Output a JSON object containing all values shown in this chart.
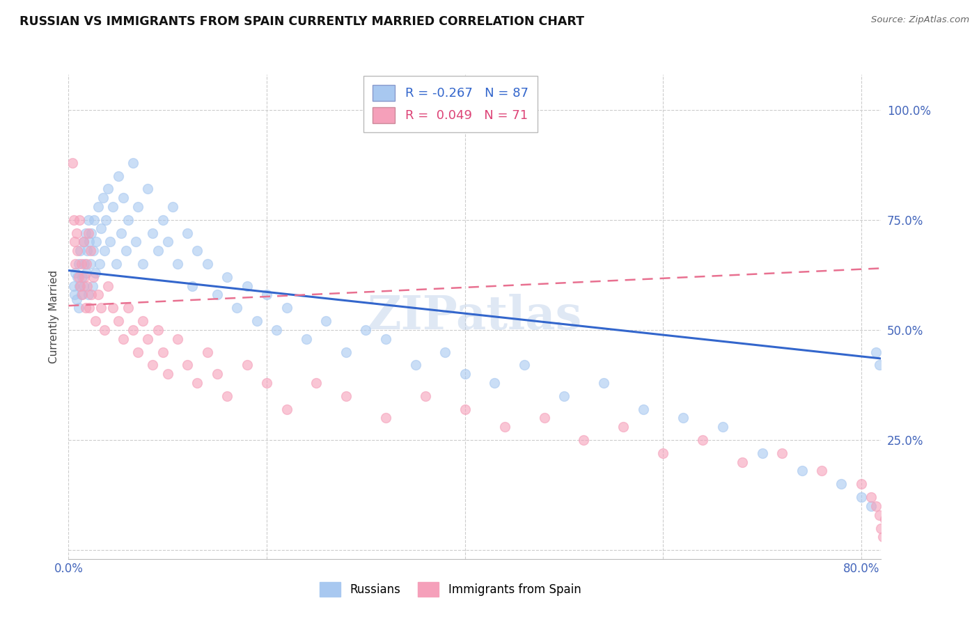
{
  "title": "RUSSIAN VS IMMIGRANTS FROM SPAIN CURRENTLY MARRIED CORRELATION CHART",
  "source": "Source: ZipAtlas.com",
  "ylabel": "Currently Married",
  "legend_labels": [
    "Russians",
    "Immigrants from Spain"
  ],
  "xlim": [
    0.0,
    0.82
  ],
  "ylim": [
    -0.02,
    1.08
  ],
  "x_ticks": [
    0.0,
    0.2,
    0.4,
    0.6,
    0.8
  ],
  "x_tick_labels": [
    "0.0%",
    "",
    "",
    "",
    "80.0%"
  ],
  "y_ticks": [
    0.0,
    0.25,
    0.5,
    0.75,
    1.0
  ],
  "y_tick_labels_right": [
    "",
    "25.0%",
    "50.0%",
    "75.0%",
    "100.0%"
  ],
  "russian_color": "#A8C8F0",
  "spain_color": "#F5A0BA",
  "russian_line_color": "#3366CC",
  "spain_line_color": "#E87090",
  "watermark": "ZIPatlas",
  "russians_x": [
    0.005,
    0.006,
    0.007,
    0.008,
    0.009,
    0.01,
    0.01,
    0.011,
    0.012,
    0.013,
    0.014,
    0.015,
    0.015,
    0.016,
    0.017,
    0.018,
    0.019,
    0.02,
    0.02,
    0.021,
    0.022,
    0.023,
    0.024,
    0.025,
    0.026,
    0.027,
    0.028,
    0.03,
    0.031,
    0.033,
    0.035,
    0.036,
    0.038,
    0.04,
    0.042,
    0.045,
    0.048,
    0.05,
    0.053,
    0.055,
    0.058,
    0.06,
    0.065,
    0.068,
    0.07,
    0.075,
    0.08,
    0.085,
    0.09,
    0.095,
    0.1,
    0.105,
    0.11,
    0.12,
    0.125,
    0.13,
    0.14,
    0.15,
    0.16,
    0.17,
    0.18,
    0.19,
    0.2,
    0.21,
    0.22,
    0.24,
    0.26,
    0.28,
    0.3,
    0.32,
    0.35,
    0.38,
    0.4,
    0.43,
    0.46,
    0.5,
    0.54,
    0.58,
    0.62,
    0.66,
    0.7,
    0.74,
    0.78,
    0.8,
    0.81,
    0.815,
    0.818
  ],
  "russians_y": [
    0.6,
    0.58,
    0.63,
    0.57,
    0.62,
    0.65,
    0.55,
    0.6,
    0.68,
    0.58,
    0.62,
    0.7,
    0.6,
    0.65,
    0.72,
    0.63,
    0.68,
    0.75,
    0.58,
    0.7,
    0.65,
    0.72,
    0.6,
    0.68,
    0.75,
    0.63,
    0.7,
    0.78,
    0.65,
    0.73,
    0.8,
    0.68,
    0.75,
    0.82,
    0.7,
    0.78,
    0.65,
    0.85,
    0.72,
    0.8,
    0.68,
    0.75,
    0.88,
    0.7,
    0.78,
    0.65,
    0.82,
    0.72,
    0.68,
    0.75,
    0.7,
    0.78,
    0.65,
    0.72,
    0.6,
    0.68,
    0.65,
    0.58,
    0.62,
    0.55,
    0.6,
    0.52,
    0.58,
    0.5,
    0.55,
    0.48,
    0.52,
    0.45,
    0.5,
    0.48,
    0.42,
    0.45,
    0.4,
    0.38,
    0.42,
    0.35,
    0.38,
    0.32,
    0.3,
    0.28,
    0.22,
    0.18,
    0.15,
    0.12,
    0.1,
    0.45,
    0.42
  ],
  "spain_x": [
    0.004,
    0.005,
    0.006,
    0.007,
    0.008,
    0.009,
    0.01,
    0.011,
    0.012,
    0.013,
    0.014,
    0.015,
    0.016,
    0.017,
    0.018,
    0.019,
    0.02,
    0.021,
    0.022,
    0.023,
    0.025,
    0.027,
    0.03,
    0.033,
    0.036,
    0.04,
    0.045,
    0.05,
    0.055,
    0.06,
    0.065,
    0.07,
    0.075,
    0.08,
    0.085,
    0.09,
    0.095,
    0.1,
    0.11,
    0.12,
    0.13,
    0.14,
    0.15,
    0.16,
    0.18,
    0.2,
    0.22,
    0.25,
    0.28,
    0.32,
    0.36,
    0.4,
    0.44,
    0.48,
    0.52,
    0.56,
    0.6,
    0.64,
    0.68,
    0.72,
    0.76,
    0.8,
    0.81,
    0.815,
    0.818,
    0.82,
    0.822,
    0.824,
    0.826,
    0.828,
    0.83
  ],
  "spain_y": [
    0.88,
    0.75,
    0.7,
    0.65,
    0.72,
    0.68,
    0.62,
    0.75,
    0.6,
    0.65,
    0.58,
    0.7,
    0.62,
    0.55,
    0.65,
    0.6,
    0.72,
    0.55,
    0.68,
    0.58,
    0.62,
    0.52,
    0.58,
    0.55,
    0.5,
    0.6,
    0.55,
    0.52,
    0.48,
    0.55,
    0.5,
    0.45,
    0.52,
    0.48,
    0.42,
    0.5,
    0.45,
    0.4,
    0.48,
    0.42,
    0.38,
    0.45,
    0.4,
    0.35,
    0.42,
    0.38,
    0.32,
    0.38,
    0.35,
    0.3,
    0.35,
    0.32,
    0.28,
    0.3,
    0.25,
    0.28,
    0.22,
    0.25,
    0.2,
    0.22,
    0.18,
    0.15,
    0.12,
    0.1,
    0.08,
    0.05,
    0.03,
    0.07,
    0.04,
    0.02,
    0.06
  ]
}
